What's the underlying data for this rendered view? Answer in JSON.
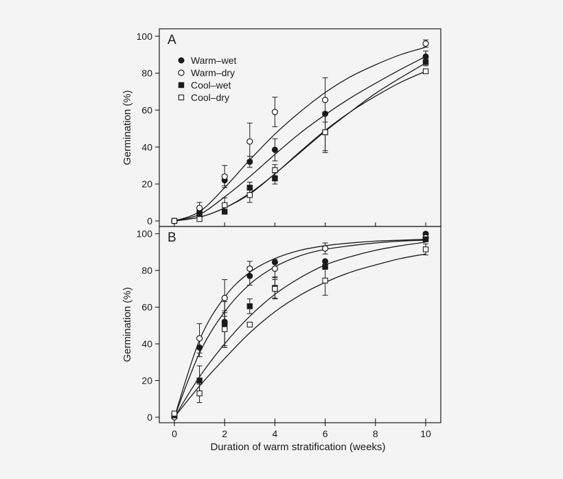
{
  "chart_data": [
    {
      "type": "line",
      "panel_label": "A",
      "xlabel": "Duration of warm stratification (weeks)",
      "ylabel": "Germination (%)",
      "xlim": [
        -0.6,
        10.6
      ],
      "ylim": [
        -3,
        104
      ],
      "x_ticks": [
        0,
        2,
        4,
        6,
        8,
        10
      ],
      "y_ticks": [
        0,
        20,
        40,
        60,
        80,
        100
      ],
      "legend_position": "top-left",
      "series": [
        {
          "name": "Warm–wet",
          "marker": "filled-circle",
          "x": [
            0,
            1,
            2,
            3,
            4,
            6,
            10
          ],
          "y": [
            0,
            5,
            22,
            32,
            38.5,
            58,
            89
          ],
          "err": [
            0,
            0,
            3,
            3,
            6,
            0,
            3
          ],
          "curve": [
            0,
            3.5,
            13,
            24,
            36,
            47.5,
            57.5,
            66.5,
            74.5,
            82,
            89
          ]
        },
        {
          "name": "Warm–dry",
          "marker": "open-circle",
          "x": [
            0,
            1,
            2,
            3,
            4,
            6,
            10
          ],
          "y": [
            0,
            7,
            24,
            43,
            59,
            65.5,
            96
          ],
          "err": [
            0,
            3,
            6,
            10,
            8,
            12,
            2
          ],
          "curve": [
            0,
            5,
            18,
            33,
            47,
            59,
            69.5,
            78,
            84.5,
            90,
            94
          ]
        },
        {
          "name": "Cool–wet",
          "marker": "filled-square",
          "x": [
            0,
            1,
            2,
            3,
            4,
            6,
            10
          ],
          "y": [
            0,
            3,
            5,
            18,
            23,
            48,
            86
          ],
          "err": [
            0,
            0,
            0,
            3,
            3,
            10,
            2
          ],
          "curve": [
            0,
            2,
            7,
            14.5,
            25.5,
            37,
            48.5,
            59,
            69,
            77.5,
            85.5
          ]
        },
        {
          "name": "Cool–dry",
          "marker": "open-square",
          "x": [
            0,
            1,
            2,
            3,
            4,
            6,
            10
          ],
          "y": [
            0,
            1,
            8.5,
            14,
            27.5,
            48,
            81
          ],
          "err": [
            0,
            0,
            4,
            4,
            3,
            11,
            0
          ],
          "curve": [
            0,
            2,
            7,
            15,
            25.5,
            37.5,
            49,
            59,
            67.5,
            75,
            81
          ]
        }
      ]
    },
    {
      "type": "line",
      "panel_label": "B",
      "xlabel": "Duration of warm stratification (weeks)",
      "ylabel": "Germination (%)",
      "xlim": [
        -0.6,
        10.6
      ],
      "ylim": [
        -3,
        104
      ],
      "x_ticks": [
        0,
        2,
        4,
        6,
        8,
        10
      ],
      "y_ticks": [
        0,
        20,
        40,
        60,
        80,
        100
      ],
      "series": [
        {
          "name": "Warm–wet",
          "marker": "filled-circle",
          "x": [
            0,
            1,
            2,
            3,
            4,
            6,
            10
          ],
          "y": [
            1,
            38,
            52,
            77,
            84.5,
            85,
            100
          ],
          "err": [
            0,
            5,
            5,
            5,
            0,
            0,
            0
          ],
          "curve": [
            0,
            35,
            57.5,
            72.5,
            82,
            88,
            91.5,
            93.5,
            95,
            96,
            96.5
          ]
        },
        {
          "name": "Warm–dry",
          "marker": "open-circle",
          "x": [
            0,
            1,
            2,
            3,
            4,
            6,
            10
          ],
          "y": [
            0,
            43,
            65,
            81,
            81,
            92,
            98
          ],
          "err": [
            0,
            8,
            10,
            4,
            5,
            3,
            0
          ],
          "curve": [
            0,
            42,
            65.5,
            79,
            86.5,
            91,
            93.5,
            95,
            96,
            96.5,
            97
          ]
        },
        {
          "name": "Cool–wet",
          "marker": "filled-square",
          "x": [
            0,
            1,
            2,
            3,
            4,
            6,
            10
          ],
          "y": [
            1,
            20,
            51,
            60.5,
            70.5,
            82,
            97
          ],
          "err": [
            0,
            8,
            12,
            4,
            6,
            0,
            0
          ],
          "curve": [
            0,
            22,
            40,
            55,
            67,
            76,
            83,
            87.5,
            91,
            93.5,
            95.5
          ]
        },
        {
          "name": "Cool–dry",
          "marker": "open-square",
          "x": [
            0,
            1,
            2,
            3,
            4,
            6,
            10
          ],
          "y": [
            2,
            13,
            48,
            50.5,
            70,
            74.5,
            91.5
          ],
          "err": [
            0,
            5,
            10,
            0,
            5,
            8,
            3
          ],
          "curve": [
            0,
            17,
            32,
            46,
            57.5,
            66.5,
            73.5,
            79,
            83,
            86.5,
            89
          ]
        }
      ]
    }
  ]
}
